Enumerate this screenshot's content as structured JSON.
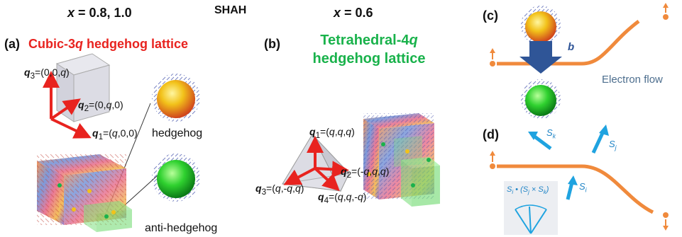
{
  "headers": {
    "x_left": "x = 0.8, 1.0",
    "shah": "SHAH",
    "x_right": "x = 0.6"
  },
  "panel_a": {
    "label": "(a)",
    "title": "Cubic-3q hedgehog lattice",
    "q3": "q3=(0,0,q)",
    "q2": "q2=(0,q,0)",
    "q1": "q1=(q,0,0)",
    "hedgehog": "hedgehog",
    "anti_hedgehog": "anti-hedgehog"
  },
  "panel_b": {
    "label": "(b)",
    "title_line1": "Tetrahedral-4q",
    "title_line2": "hedgehog lattice",
    "q1": "q1=(q,q,q)",
    "q2": "q2=(-q,q,q)",
    "q3": "q3=(q,-q,q)",
    "q4": "q4=(q,q,-q)"
  },
  "panel_c": {
    "label": "(c)",
    "b_label": "b",
    "electron_flow": "Electron flow"
  },
  "panel_d": {
    "label": "(d)",
    "sk": "Sk",
    "sj": "Sj",
    "si": "Si",
    "formula": "Si • (Sj × Sk)"
  },
  "colors": {
    "red": "#e8231f",
    "green": "#19b24b",
    "orange_path": "#f08a3c",
    "arrow_blue": "#1fa3e0",
    "b_arrow": "#2f5597"
  }
}
